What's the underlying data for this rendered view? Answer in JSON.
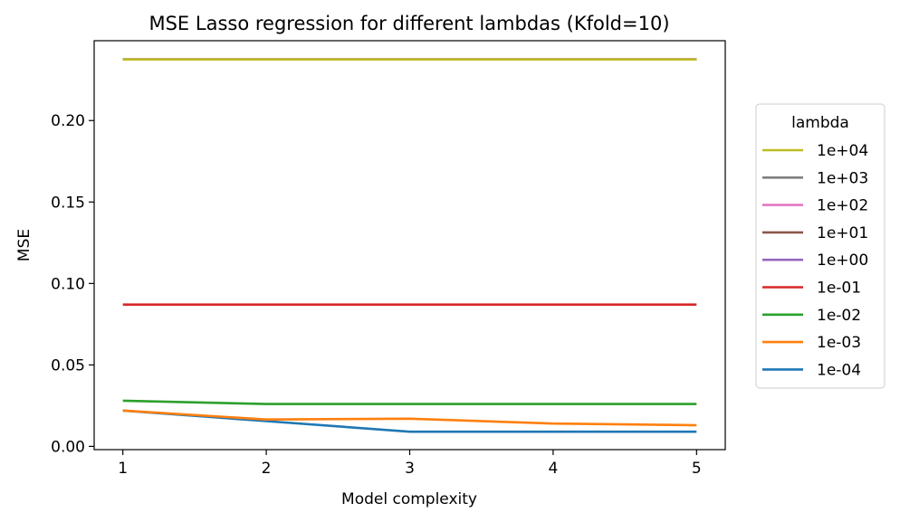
{
  "chart_data": {
    "type": "line",
    "title": "MSE Lasso regression for different lambdas (Kfold=10)",
    "xlabel": "Model complexity",
    "ylabel": "MSE",
    "x": [
      1,
      2,
      3,
      4,
      5
    ],
    "xticks": [
      "1",
      "2",
      "3",
      "4",
      "5"
    ],
    "yticks": [
      "0.00",
      "0.05",
      "0.10",
      "0.15",
      "0.20"
    ],
    "xlim": [
      0.8,
      5.2
    ],
    "ylim": [
      -0.002,
      0.249
    ],
    "grid": false,
    "legend": {
      "title": "lambda",
      "placement": "center-right (outside plot)"
    },
    "series": [
      {
        "name": "1e+04",
        "color": "#bcbd22",
        "values": [
          0.2375,
          0.2375,
          0.2375,
          0.2375,
          0.2375
        ]
      },
      {
        "name": "1e+03",
        "color": "#7f7f7f",
        "values": [
          0.2375,
          0.2375,
          0.2375,
          0.2375,
          0.2375
        ]
      },
      {
        "name": "1e+02",
        "color": "#e377c2",
        "values": [
          0.2375,
          0.2375,
          0.2375,
          0.2375,
          0.2375
        ]
      },
      {
        "name": "1e+01",
        "color": "#8c564b",
        "values": [
          0.2375,
          0.2375,
          0.2375,
          0.2375,
          0.2375
        ]
      },
      {
        "name": "1e+00",
        "color": "#9467bd",
        "values": [
          0.2375,
          0.2375,
          0.2375,
          0.2375,
          0.2375
        ]
      },
      {
        "name": "1e-01",
        "color": "#d62728",
        "values": [
          0.087,
          0.087,
          0.087,
          0.087,
          0.087
        ]
      },
      {
        "name": "1e-02",
        "color": "#2ca02c",
        "values": [
          0.028,
          0.026,
          0.026,
          0.026,
          0.026
        ]
      },
      {
        "name": "1e-03",
        "color": "#ff7f0e",
        "values": [
          0.022,
          0.0165,
          0.017,
          0.014,
          0.013
        ]
      },
      {
        "name": "1e-04",
        "color": "#1f77b4",
        "values": [
          0.022,
          0.0155,
          0.009,
          0.009,
          0.009
        ]
      }
    ]
  }
}
